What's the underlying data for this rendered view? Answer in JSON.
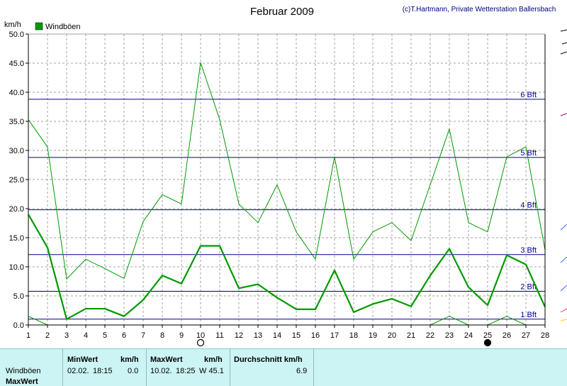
{
  "chart_data": {
    "type": "line",
    "title": "Februar 2009",
    "credit": "(c)T.Hartmann, Private Wetterstation Ballersbach",
    "ylabel": "km/h",
    "xlabel": "",
    "ylim": [
      0,
      50
    ],
    "xlim": [
      1,
      28
    ],
    "y_ticks": [
      "0.0",
      "5.0",
      "10.0",
      "15.0",
      "20.0",
      "25.0",
      "30.0",
      "35.0",
      "40.0",
      "45.0",
      "50.0"
    ],
    "x_ticks": [
      "1",
      "2",
      "3",
      "4",
      "5",
      "6",
      "7",
      "8",
      "9",
      "10",
      "11",
      "12",
      "13",
      "14",
      "15",
      "16",
      "17",
      "18",
      "19",
      "20",
      "21",
      "22",
      "23",
      "24",
      "25",
      "26",
      "27",
      "28"
    ],
    "grid": true,
    "legend": {
      "position": "top-left",
      "label": "Windböen",
      "color": "#009900"
    },
    "beaufort_lines": [
      {
        "label": "1 Bft",
        "value": 1.0
      },
      {
        "label": "2 Bft",
        "value": 5.8
      },
      {
        "label": "3 Bft",
        "value": 12.1
      },
      {
        "label": "4 Bft",
        "value": 19.8
      },
      {
        "label": "5 Bft",
        "value": 28.8
      },
      {
        "label": "6 Bft",
        "value": 38.8
      }
    ],
    "series": [
      {
        "name": "Windböen",
        "style": "max",
        "color": "#009900",
        "x": [
          1,
          2,
          3,
          4,
          5,
          6,
          7,
          8,
          9,
          10,
          11,
          12,
          13,
          14,
          15,
          16,
          17,
          18,
          19,
          20,
          21,
          22,
          23,
          24,
          25,
          26,
          27,
          28
        ],
        "values": [
          35.3,
          30.6,
          7.9,
          11.3,
          9.7,
          8.0,
          17.8,
          22.4,
          20.8,
          45.1,
          35.3,
          20.8,
          17.6,
          24.1,
          16.0,
          11.3,
          28.9,
          11.3,
          16.0,
          17.6,
          14.5,
          24.1,
          33.7,
          17.6,
          16.0,
          28.9,
          30.6,
          12.9
        ]
      },
      {
        "name": "Windböen",
        "style": "average",
        "color": "#009900",
        "x": [
          1,
          2,
          3,
          4,
          5,
          6,
          7,
          8,
          9,
          10,
          11,
          12,
          13,
          14,
          15,
          16,
          17,
          18,
          19,
          20,
          21,
          22,
          23,
          24,
          25,
          26,
          27,
          28
        ],
        "values": [
          19.0,
          13.3,
          1.0,
          2.8,
          2.8,
          1.5,
          4.3,
          8.5,
          7.1,
          13.6,
          13.6,
          6.3,
          7.0,
          4.7,
          2.7,
          2.7,
          9.4,
          2.2,
          3.6,
          4.5,
          3.2,
          8.5,
          13.1,
          6.5,
          3.4,
          12.0,
          10.4,
          3.1
        ]
      },
      {
        "name": "Windböen",
        "style": "min",
        "color": "#009900",
        "x": [
          1,
          2,
          22,
          23,
          24,
          25,
          26,
          27
        ],
        "values": [
          1.5,
          0.0,
          0.0,
          1.5,
          0.0,
          0.0,
          1.5,
          0.0
        ]
      }
    ],
    "moon_phases": [
      {
        "day": 10,
        "phase": "full"
      },
      {
        "day": 25,
        "phase": "new"
      }
    ]
  },
  "footer": {
    "row_labels": [
      "Windböen",
      "MaxWert"
    ],
    "min_header": "MinWert",
    "min_unit": "km/h",
    "min_date": "02.02.",
    "min_time": "18:15",
    "min_value": "0.0",
    "max_header": "MaxWert",
    "max_unit": "km/h",
    "max_date": "10.02.",
    "max_time": "18:25",
    "max_value": "W 45.1",
    "avg_header": "Durchschnitt km/h",
    "avg_value": "6.9"
  }
}
